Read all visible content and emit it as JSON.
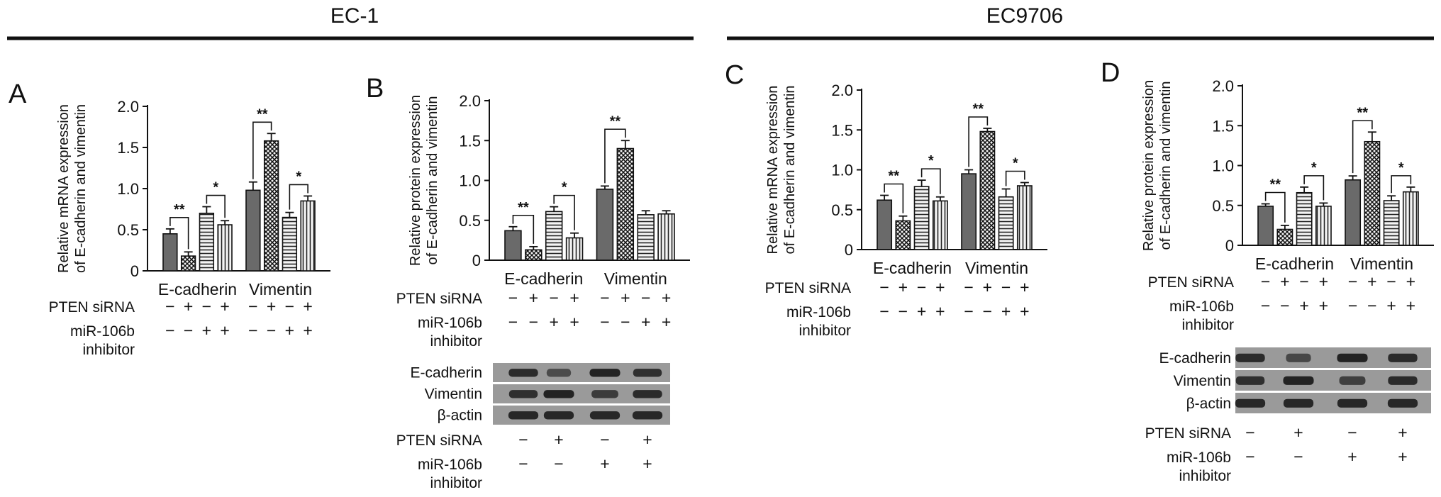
{
  "headers": {
    "left": "EC-1",
    "right": "EC9706"
  },
  "colors": {
    "bar_fill": "#e8e8e8",
    "bar_stroke": "#111111",
    "dark_fill": "#6a6a6a",
    "blot_bg": "#9a9a9a",
    "band": "#1f1f1f"
  },
  "chart_data": [
    {
      "panel": "A",
      "type": "bar",
      "ylabel": [
        "Relative mRNA expression",
        "of E-cadherin and vimentin"
      ],
      "ylim": [
        0,
        2.0
      ],
      "yticks": [
        "0",
        "0.5",
        "1.0",
        "1.5",
        "2.0"
      ],
      "ytick_values": [
        0,
        0.5,
        1.0,
        1.5,
        2.0
      ],
      "categories": [
        "E-cadherin",
        "Vimentin"
      ],
      "series": [
        {
          "pattern": "solid",
          "values": [
            0.45,
            0.98
          ],
          "errors": [
            0.06,
            0.1
          ]
        },
        {
          "pattern": "crosshatch",
          "values": [
            0.18,
            1.58
          ],
          "errors": [
            0.05,
            0.09
          ]
        },
        {
          "pattern": "horizontal",
          "values": [
            0.7,
            0.65
          ],
          "errors": [
            0.08,
            0.06
          ]
        },
        {
          "pattern": "vertical",
          "values": [
            0.56,
            0.85
          ],
          "errors": [
            0.05,
            0.06
          ]
        }
      ],
      "significance": [
        {
          "group": 0,
          "from": 0,
          "to": 1,
          "label": "**"
        },
        {
          "group": 0,
          "from": 2,
          "to": 3,
          "label": "*"
        },
        {
          "group": 1,
          "from": 0,
          "to": 1,
          "label": "**"
        },
        {
          "group": 1,
          "from": 2,
          "to": 3,
          "label": "*"
        }
      ],
      "treatments": [
        {
          "label": [
            "PTEN siRNA"
          ],
          "values": [
            "−",
            "+",
            "−",
            "+",
            "−",
            "+",
            "−",
            "+"
          ]
        },
        {
          "label": [
            "miR-106b",
            "inhibitor"
          ],
          "values": [
            "−",
            "−",
            "+",
            "+",
            "−",
            "−",
            "+",
            "+"
          ]
        }
      ]
    },
    {
      "panel": "B",
      "type": "bar",
      "ylabel": [
        "Relative protein expression",
        "of E-cadherin and vimentin"
      ],
      "ylim": [
        0,
        2.0
      ],
      "yticks": [
        "0",
        "0.5",
        "1.0",
        "1.5",
        "2.0"
      ],
      "ytick_values": [
        0,
        0.5,
        1.0,
        1.5,
        2.0
      ],
      "categories": [
        "E-cadherin",
        "Vimentin"
      ],
      "series": [
        {
          "pattern": "solid",
          "values": [
            0.37,
            0.89
          ],
          "errors": [
            0.05,
            0.04
          ]
        },
        {
          "pattern": "crosshatch",
          "values": [
            0.13,
            1.4
          ],
          "errors": [
            0.04,
            0.1
          ]
        },
        {
          "pattern": "horizontal",
          "values": [
            0.61,
            0.57
          ],
          "errors": [
            0.06,
            0.05
          ]
        },
        {
          "pattern": "vertical",
          "values": [
            0.28,
            0.58
          ],
          "errors": [
            0.06,
            0.04
          ]
        }
      ],
      "significance": [
        {
          "group": 0,
          "from": 0,
          "to": 1,
          "label": "**"
        },
        {
          "group": 0,
          "from": 2,
          "to": 3,
          "label": "*"
        },
        {
          "group": 1,
          "from": 0,
          "to": 1,
          "label": "**"
        }
      ],
      "treatments": [
        {
          "label": [
            "PTEN siRNA"
          ],
          "values": [
            "−",
            "+",
            "−",
            "+",
            "−",
            "+",
            "−",
            "+"
          ]
        },
        {
          "label": [
            "miR-106b",
            "inhibitor"
          ],
          "values": [
            "−",
            "−",
            "+",
            "+",
            "−",
            "−",
            "+",
            "+"
          ]
        }
      ],
      "blot": {
        "rows": [
          {
            "label": "E-cadherin",
            "intensity": [
              0.85,
              0.45,
              0.95,
              0.8
            ]
          },
          {
            "label": "Vimentin",
            "intensity": [
              0.8,
              0.95,
              0.65,
              0.85
            ]
          },
          {
            "label": "β-actin",
            "intensity": [
              0.9,
              0.9,
              0.9,
              0.9
            ]
          }
        ],
        "treatments": [
          {
            "label": [
              "PTEN siRNA"
            ],
            "values": [
              "−",
              "+",
              "−",
              "+"
            ]
          },
          {
            "label": [
              "miR-106b",
              "inhibitor"
            ],
            "values": [
              "−",
              "−",
              "+",
              "+"
            ]
          }
        ]
      }
    },
    {
      "panel": "C",
      "type": "bar",
      "ylabel": [
        "Relative mRNA expression",
        "of E-cadherin and vimentin"
      ],
      "ylim": [
        0,
        2.0
      ],
      "yticks": [
        "0",
        "0.5",
        "1.0",
        "1.5",
        "2.0"
      ],
      "ytick_values": [
        0,
        0.5,
        1.0,
        1.5,
        2.0
      ],
      "categories": [
        "E-cadherin",
        "Vimentin"
      ],
      "series": [
        {
          "pattern": "solid",
          "values": [
            0.62,
            0.95
          ],
          "errors": [
            0.06,
            0.05
          ]
        },
        {
          "pattern": "crosshatch",
          "values": [
            0.36,
            1.48
          ],
          "errors": [
            0.06,
            0.04
          ]
        },
        {
          "pattern": "horizontal",
          "values": [
            0.79,
            0.66
          ],
          "errors": [
            0.08,
            0.1
          ]
        },
        {
          "pattern": "vertical",
          "values": [
            0.61,
            0.8
          ],
          "errors": [
            0.05,
            0.04
          ]
        }
      ],
      "significance": [
        {
          "group": 0,
          "from": 0,
          "to": 1,
          "label": "**"
        },
        {
          "group": 0,
          "from": 2,
          "to": 3,
          "label": "*"
        },
        {
          "group": 1,
          "from": 0,
          "to": 1,
          "label": "**"
        },
        {
          "group": 1,
          "from": 2,
          "to": 3,
          "label": "*"
        }
      ],
      "treatments": [
        {
          "label": [
            "PTEN siRNA"
          ],
          "values": [
            "−",
            "+",
            "−",
            "+",
            "−",
            "+",
            "−",
            "+"
          ]
        },
        {
          "label": [
            "miR-106b",
            "inhibitor"
          ],
          "values": [
            "−",
            "−",
            "+",
            "+",
            "−",
            "−",
            "+",
            "+"
          ]
        }
      ]
    },
    {
      "panel": "D",
      "type": "bar",
      "ylabel": [
        "Relative protein expression",
        "of E-cadherin and vimentin"
      ],
      "ylim": [
        0,
        2.0
      ],
      "yticks": [
        "0",
        "0.5",
        "1.0",
        "1.5",
        "2.0"
      ],
      "ytick_values": [
        0,
        0.5,
        1.0,
        1.5,
        2.0
      ],
      "categories": [
        "E-cadherin",
        "Vimentin"
      ],
      "series": [
        {
          "pattern": "solid",
          "values": [
            0.49,
            0.82
          ],
          "errors": [
            0.03,
            0.05
          ]
        },
        {
          "pattern": "crosshatch",
          "values": [
            0.2,
            1.3
          ],
          "errors": [
            0.05,
            0.12
          ]
        },
        {
          "pattern": "horizontal",
          "values": [
            0.66,
            0.56
          ],
          "errors": [
            0.07,
            0.06
          ]
        },
        {
          "pattern": "vertical",
          "values": [
            0.49,
            0.67
          ],
          "errors": [
            0.04,
            0.06
          ]
        }
      ],
      "significance": [
        {
          "group": 0,
          "from": 0,
          "to": 1,
          "label": "**"
        },
        {
          "group": 0,
          "from": 2,
          "to": 3,
          "label": "*"
        },
        {
          "group": 1,
          "from": 0,
          "to": 1,
          "label": "**"
        },
        {
          "group": 1,
          "from": 2,
          "to": 3,
          "label": "*"
        }
      ],
      "treatments": [
        {
          "label": [
            "PTEN siRNA"
          ],
          "values": [
            "−",
            "+",
            "−",
            "+",
            "−",
            "+",
            "−",
            "+"
          ]
        },
        {
          "label": [
            "miR-106b",
            "inhibitor"
          ],
          "values": [
            "−",
            "−",
            "+",
            "+",
            "−",
            "−",
            "+",
            "+"
          ]
        }
      ],
      "blot": {
        "rows": [
          {
            "label": "E-cadherin",
            "intensity": [
              0.85,
              0.5,
              0.95,
              0.85
            ]
          },
          {
            "label": "Vimentin",
            "intensity": [
              0.8,
              0.95,
              0.6,
              0.85
            ]
          },
          {
            "label": "β-actin",
            "intensity": [
              0.9,
              0.9,
              0.9,
              0.9
            ]
          }
        ],
        "treatments": [
          {
            "label": [
              "PTEN siRNA"
            ],
            "values": [
              "−",
              "+",
              "−",
              "+"
            ]
          },
          {
            "label": [
              "miR-106b",
              "inhibitor"
            ],
            "values": [
              "−",
              "−",
              "+",
              "+"
            ]
          }
        ]
      }
    }
  ]
}
